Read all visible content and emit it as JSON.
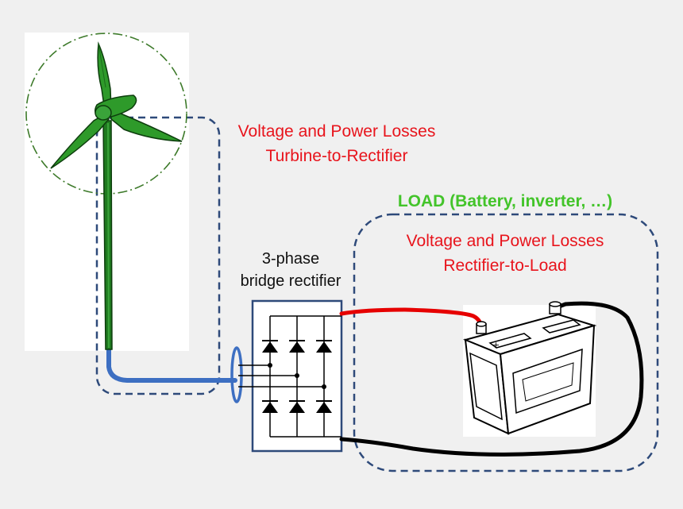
{
  "turbine_losses": {
    "line1": "Voltage and Power Losses",
    "line2": "Turbine-to-Rectifier"
  },
  "load_title": "LOAD (Battery, inverter, …)",
  "load_losses": {
    "line1": "Voltage and Power Losses",
    "line2": "Rectifier-to-Load"
  },
  "rectifier": {
    "line1": "3-phase",
    "line2": "bridge rectifier"
  },
  "colors": {
    "background": "#f0f0f0",
    "dashed_box": "#2e4a7a",
    "loss_text": "#e8141c",
    "load_text": "#43c42a",
    "blade_green": "#2e9a2a",
    "ac_cable": "#3d6fc2",
    "positive_wire": "#e60000",
    "negative_wire": "#000000"
  },
  "icons": [
    "wind-turbine-icon",
    "three-phase-rectifier-icon",
    "car-battery-icon"
  ]
}
